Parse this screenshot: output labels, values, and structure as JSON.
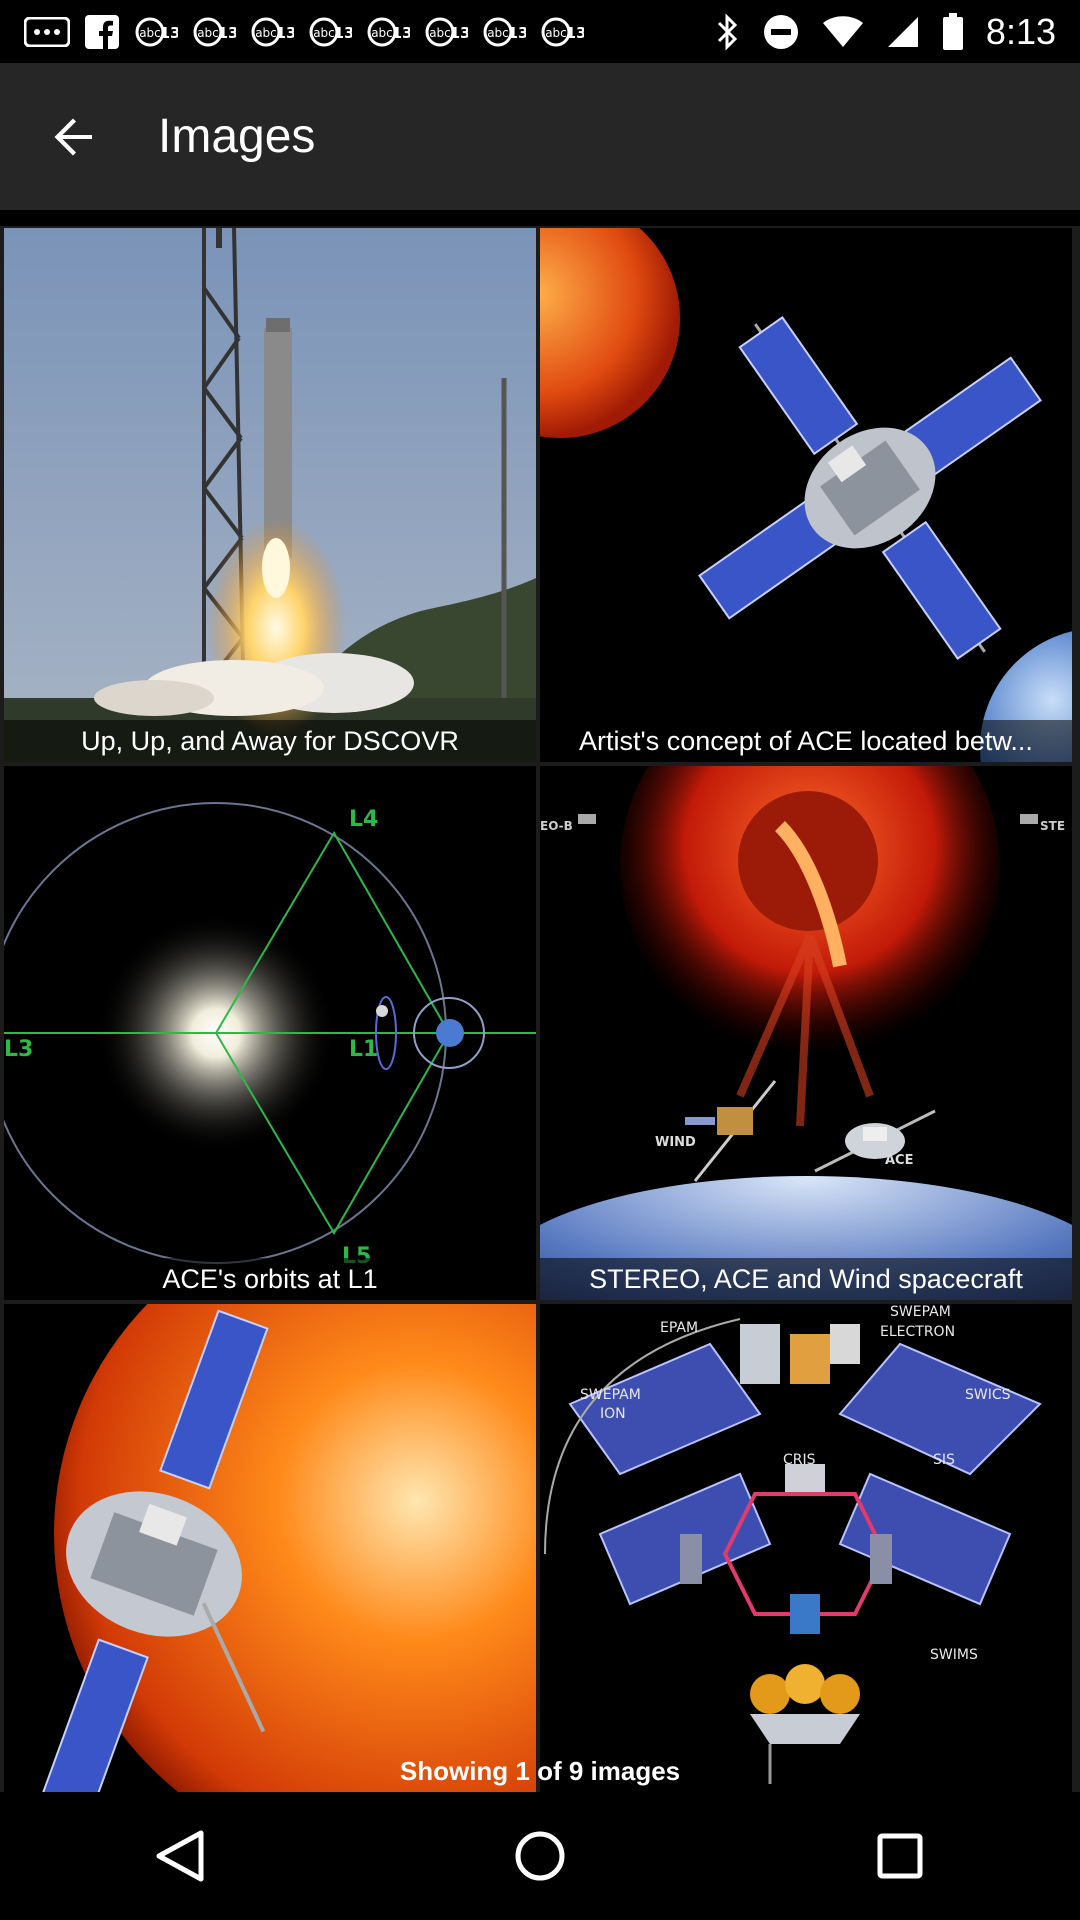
{
  "status_bar": {
    "time": "8:13",
    "notification_icons": [
      "more-icon",
      "facebook-icon",
      "abc13-icon",
      "abc13-icon",
      "abc13-icon",
      "abc13-icon",
      "abc13-icon",
      "abc13-icon",
      "abc13-icon",
      "abc13-icon"
    ],
    "badge_text": "13",
    "system_icons": [
      "bluetooth-icon",
      "do-not-disturb-icon",
      "wifi-icon",
      "signal-icon",
      "battery-icon"
    ]
  },
  "app_bar": {
    "title": "Images"
  },
  "gallery": {
    "tiles": [
      {
        "caption": "Up, Up, and Away for DSCOVR"
      },
      {
        "caption": "Artist's concept of ACE located betw..."
      },
      {
        "caption": "ACE's orbits at L1"
      },
      {
        "caption": "STEREO, ACE and Wind spacecraft"
      },
      {
        "caption": ""
      },
      {
        "caption": ""
      }
    ],
    "counter": "Showing 1 of 9 images"
  },
  "diagram_labels": {
    "l4": "L4",
    "l5": "L5",
    "l1": "L1",
    "l3": "L3",
    "eob": "EO-B",
    "ste": "STE",
    "wind": "WIND",
    "ace": "ACE",
    "epam": "EPAM",
    "swepam_ion": "SWEPAM",
    "ion": "ION",
    "swepam_electron": "SWEPAM",
    "electron": "ELECTRON",
    "swics": "SWICS",
    "cris": "CRIS",
    "sis": "SIS",
    "swims": "SWIMS"
  }
}
